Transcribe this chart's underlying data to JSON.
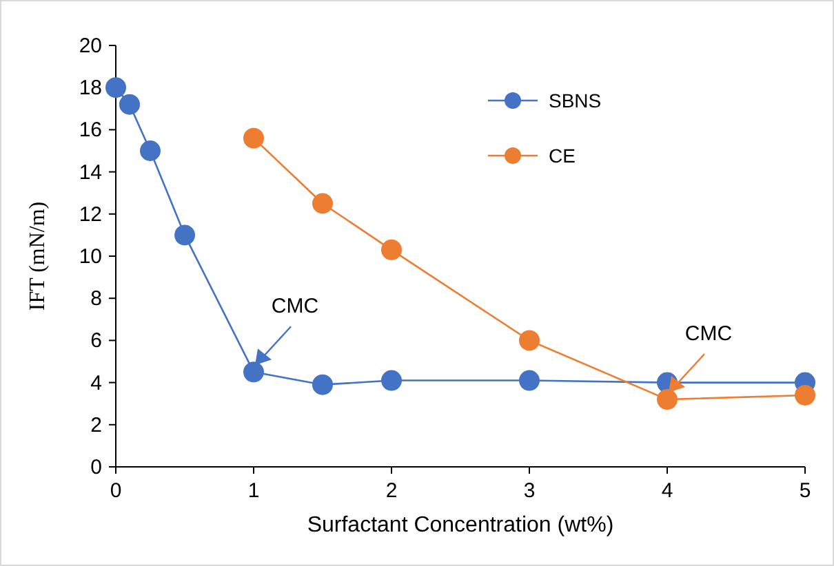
{
  "chart_data": {
    "type": "line",
    "xlabel": "Surfactant Concentration (wt%)",
    "ylabel": "IFT (mN/m)",
    "xlim": [
      0,
      5
    ],
    "xticks": [
      0,
      1,
      2,
      3,
      4,
      5
    ],
    "ylim": [
      0,
      20
    ],
    "yticks": [
      0,
      2,
      4,
      6,
      8,
      10,
      12,
      14,
      16,
      18,
      20
    ],
    "grid": false,
    "legend": "top right",
    "marker": "circle",
    "line_style": "solid",
    "series": [
      {
        "name": "SBNS",
        "color": "#4472c4",
        "x": [
          0,
          0.1,
          0.25,
          0.5,
          1,
          1.5,
          2,
          3,
          4,
          5
        ],
        "values": [
          18,
          17.2,
          15,
          11,
          4.5,
          3.9,
          4.1,
          4.1,
          4.0,
          4.0
        ]
      },
      {
        "name": "CE",
        "color": "#ed7d31",
        "x": [
          1,
          1.5,
          2,
          3,
          4,
          5
        ],
        "values": [
          15.6,
          12.5,
          10.3,
          6,
          3.2,
          3.4
        ]
      }
    ],
    "annotations": [
      {
        "text": "CMC",
        "x": 1,
        "y": 4.5
      },
      {
        "text": "CMC",
        "x": 4,
        "y": 3.2
      }
    ]
  }
}
